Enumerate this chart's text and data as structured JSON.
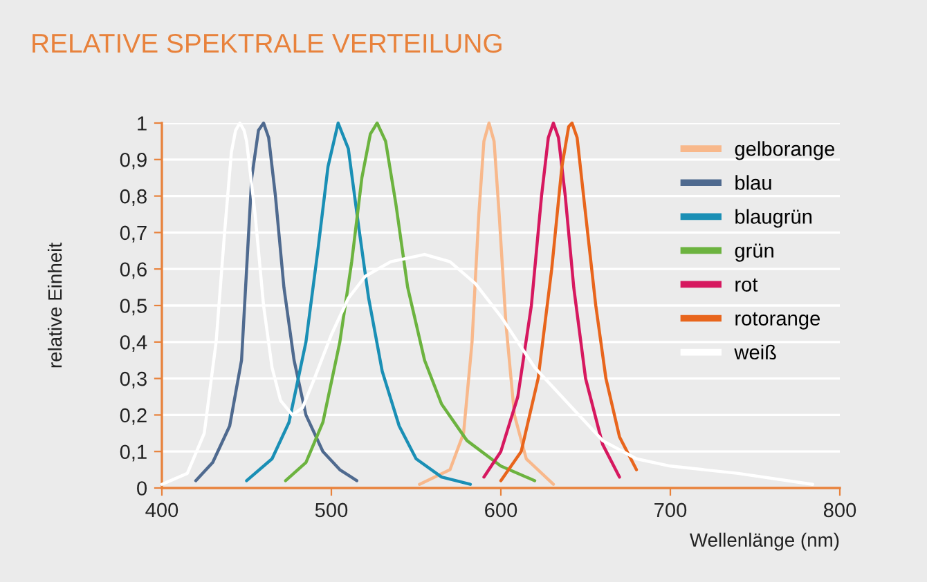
{
  "chart_data": {
    "type": "line",
    "title": "RELATIVE SPEKTRALE VERTEILUNG",
    "xlabel": "Wellenlänge (nm)",
    "ylabel": "relative Einheit",
    "xlim": [
      400,
      800
    ],
    "xticks": [
      400,
      500,
      600,
      700,
      800
    ],
    "ylim": [
      0,
      1
    ],
    "yticks": [
      0,
      {
        "value": 0.1,
        "label": "0,1"
      },
      {
        "value": 0.2,
        "label": "0,2"
      },
      {
        "value": 0.3,
        "label": "0,3"
      },
      {
        "value": 0.4,
        "label": "0,4"
      },
      {
        "value": 0.5,
        "label": "0,5"
      },
      {
        "value": 0.6,
        "label": "0,6"
      },
      {
        "value": 0.7,
        "label": "0,7"
      },
      {
        "value": 0.8,
        "label": "0,8"
      },
      {
        "value": 0.9,
        "label": "0,9"
      },
      1
    ],
    "grid": "y",
    "legend": "top right",
    "marker": "none",
    "line_style": "solid",
    "series": [
      {
        "name": "gelborange",
        "color": "#f8b88b",
        "x": [
          552,
          570,
          578,
          583,
          587,
          590,
          593,
          596,
          599,
          603,
          608,
          615,
          631
        ],
        "values": [
          0.01,
          0.05,
          0.15,
          0.4,
          0.75,
          0.95,
          1,
          0.95,
          0.75,
          0.45,
          0.2,
          0.08,
          0.01
        ]
      },
      {
        "name": "blau",
        "color": "#4f6a8f",
        "x": [
          420,
          430,
          440,
          447,
          450,
          453,
          457,
          460,
          463,
          467,
          472,
          478,
          485,
          495,
          505,
          515
        ],
        "values": [
          0.02,
          0.07,
          0.17,
          0.35,
          0.6,
          0.85,
          0.98,
          1,
          0.96,
          0.8,
          0.55,
          0.35,
          0.2,
          0.1,
          0.05,
          0.02
        ]
      },
      {
        "name": "blaugrün",
        "color": "#1a8fb5",
        "x": [
          450,
          465,
          475,
          485,
          492,
          498,
          504,
          510,
          516,
          522,
          530,
          540,
          550,
          565,
          582
        ],
        "values": [
          0.02,
          0.08,
          0.18,
          0.4,
          0.65,
          0.88,
          1,
          0.93,
          0.72,
          0.52,
          0.32,
          0.17,
          0.08,
          0.03,
          0.01
        ]
      },
      {
        "name": "grün",
        "color": "#6cb33f",
        "x": [
          473,
          485,
          495,
          505,
          512,
          518,
          523,
          527,
          532,
          538,
          545,
          555,
          565,
          580,
          600,
          620
        ],
        "values": [
          0.02,
          0.07,
          0.18,
          0.4,
          0.62,
          0.85,
          0.97,
          1,
          0.95,
          0.78,
          0.55,
          0.35,
          0.23,
          0.13,
          0.06,
          0.02
        ]
      },
      {
        "name": "rot",
        "color": "#d6185f",
        "x": [
          590,
          600,
          610,
          618,
          624,
          628,
          631,
          634,
          638,
          643,
          650,
          660,
          670
        ],
        "values": [
          0.03,
          0.1,
          0.25,
          0.5,
          0.8,
          0.96,
          1,
          0.96,
          0.8,
          0.55,
          0.3,
          0.12,
          0.03
        ]
      },
      {
        "name": "rotorange",
        "color": "#e8651c",
        "x": [
          600,
          612,
          622,
          630,
          636,
          640,
          642,
          645,
          650,
          656,
          662,
          670,
          680
        ],
        "values": [
          0.02,
          0.1,
          0.3,
          0.6,
          0.88,
          0.99,
          1,
          0.96,
          0.75,
          0.5,
          0.3,
          0.14,
          0.05
        ]
      },
      {
        "name": "weiß",
        "color": "#ffffff",
        "x": [
          400,
          415,
          425,
          432,
          437,
          441,
          443.5,
          446,
          448.5,
          450,
          455,
          460,
          465,
          470,
          477,
          483,
          490,
          500,
          510,
          520,
          535,
          555,
          570,
          585,
          600,
          620,
          640,
          660,
          680,
          700,
          740,
          784
        ],
        "values": [
          0.01,
          0.04,
          0.15,
          0.4,
          0.7,
          0.92,
          0.98,
          1,
          0.98,
          0.95,
          0.75,
          0.5,
          0.33,
          0.24,
          0.2,
          0.22,
          0.3,
          0.42,
          0.52,
          0.58,
          0.62,
          0.64,
          0.62,
          0.56,
          0.47,
          0.33,
          0.23,
          0.13,
          0.08,
          0.06,
          0.04,
          0.01
        ]
      }
    ]
  }
}
